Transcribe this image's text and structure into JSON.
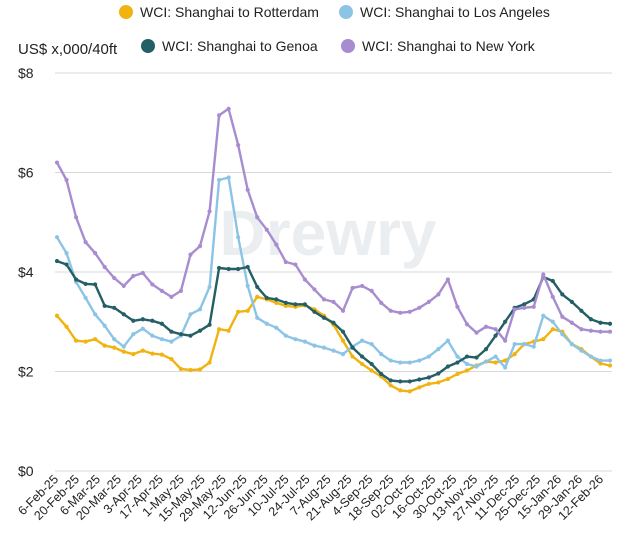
{
  "chart_data": {
    "type": "line",
    "ylabel": "US$ x,000/40ft",
    "ylim": [
      0,
      8
    ],
    "yticks": [
      0,
      2,
      4,
      6,
      8
    ],
    "ytick_labels": [
      "$0",
      "$2",
      "$4",
      "$6",
      "$8"
    ],
    "grid": true,
    "legend_position": "top",
    "watermark": "Drewry",
    "x_tick_labels": [
      "6-Feb-25",
      "20-Feb-25",
      "6-Mar-25",
      "20-Mar-25",
      "3-Apr-25",
      "17-Apr-25",
      "1-May-25",
      "15-May-25",
      "29-May-25",
      "12-Jun-25",
      "26-Jun-25",
      "10-Jul-25",
      "24-Jul-25",
      "7-Aug-25",
      "21-Aug-25",
      "4-Sep-25",
      "18-Sep-25",
      "02-Oct-25",
      "16-Oct-25",
      "30-Oct-25",
      "13-Nov-25",
      "27-Nov-25",
      "11-Dec-25",
      "25-Dec-25",
      "15-Jan-26",
      "29-Jan-26",
      "12-Feb-26"
    ],
    "series": [
      {
        "name": "WCI: Shanghai to Rotterdam",
        "color": "#f0b310",
        "values": [
          3.12,
          2.9,
          2.62,
          2.6,
          2.65,
          2.52,
          2.48,
          2.4,
          2.35,
          2.42,
          2.36,
          2.34,
          2.25,
          2.05,
          2.03,
          2.04,
          2.18,
          2.85,
          2.82,
          3.2,
          3.22,
          3.5,
          3.45,
          3.38,
          3.32,
          3.3,
          3.33,
          3.25,
          3.12,
          2.94,
          2.62,
          2.3,
          2.15,
          2.02,
          1.9,
          1.72,
          1.62,
          1.6,
          1.68,
          1.75,
          1.78,
          1.85,
          1.95,
          2.02,
          2.12,
          2.2,
          2.18,
          2.22,
          2.35,
          2.55,
          2.6,
          2.65,
          2.85,
          2.8,
          2.55,
          2.45,
          2.3,
          2.16,
          2.12
        ]
      },
      {
        "name": "WCI: Shanghai to Los Angeles",
        "color": "#8cc4e6",
        "values": [
          4.7,
          4.38,
          3.8,
          3.48,
          3.15,
          2.92,
          2.65,
          2.5,
          2.75,
          2.86,
          2.72,
          2.65,
          2.6,
          2.72,
          3.15,
          3.25,
          3.7,
          5.85,
          5.9,
          4.7,
          3.72,
          3.08,
          2.96,
          2.88,
          2.72,
          2.65,
          2.6,
          2.52,
          2.48,
          2.42,
          2.35,
          2.5,
          2.62,
          2.55,
          2.35,
          2.22,
          2.18,
          2.18,
          2.22,
          2.3,
          2.45,
          2.62,
          2.3,
          2.15,
          2.1,
          2.2,
          2.3,
          2.08,
          2.55,
          2.55,
          2.5,
          3.12,
          3.0,
          2.75,
          2.55,
          2.42,
          2.3,
          2.22,
          2.22
        ]
      },
      {
        "name": "WCI: Shanghai to Genoa",
        "color": "#245f66",
        "values": [
          4.22,
          4.15,
          3.85,
          3.76,
          3.75,
          3.32,
          3.28,
          3.15,
          3.02,
          3.05,
          3.02,
          2.96,
          2.8,
          2.75,
          2.72,
          2.82,
          2.94,
          4.08,
          4.06,
          4.06,
          4.1,
          3.7,
          3.48,
          3.45,
          3.38,
          3.35,
          3.35,
          3.2,
          3.08,
          2.98,
          2.8,
          2.48,
          2.3,
          2.15,
          1.95,
          1.82,
          1.8,
          1.8,
          1.84,
          1.88,
          1.96,
          2.1,
          2.18,
          2.3,
          2.28,
          2.45,
          2.72,
          3.0,
          3.28,
          3.35,
          3.45,
          3.9,
          3.82,
          3.55,
          3.4,
          3.22,
          3.05,
          2.98,
          2.96
        ]
      },
      {
        "name": "WCI: Shanghai to New York",
        "color": "#a88cd0",
        "values": [
          6.2,
          5.85,
          5.1,
          4.6,
          4.38,
          4.1,
          3.88,
          3.72,
          3.92,
          3.98,
          3.75,
          3.62,
          3.5,
          3.62,
          4.35,
          4.52,
          5.22,
          7.15,
          7.28,
          6.55,
          5.65,
          5.1,
          4.85,
          4.55,
          4.2,
          4.15,
          3.85,
          3.65,
          3.45,
          3.4,
          3.22,
          3.68,
          3.72,
          3.62,
          3.38,
          3.22,
          3.18,
          3.2,
          3.28,
          3.4,
          3.55,
          3.85,
          3.3,
          2.95,
          2.78,
          2.9,
          2.85,
          2.62,
          3.25,
          3.28,
          3.3,
          3.95,
          3.5,
          3.1,
          2.98,
          2.85,
          2.82,
          2.8,
          2.8
        ]
      }
    ]
  }
}
